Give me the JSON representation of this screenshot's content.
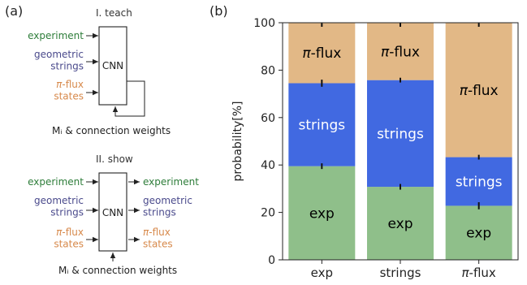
{
  "panel_a": {
    "label": "(a)",
    "teach": {
      "title": "I. teach",
      "box_label": "CNN",
      "inputs": [
        {
          "text": "experiment",
          "color": "#2e7d3a"
        },
        {
          "text": "geometric\nstrings",
          "color": "#4a4a8c"
        },
        {
          "text": "π-flux\nstates",
          "color": "#d7894b"
        }
      ],
      "feedback_label": "Mᵢ & connection weights"
    },
    "show": {
      "title": "II. show",
      "box_label": "CNN",
      "inputs": [
        {
          "text": "experiment",
          "color": "#2e7d3a"
        },
        {
          "text": "geometric\nstrings",
          "color": "#4a4a8c"
        },
        {
          "text": "π-flux\nstates",
          "color": "#d7894b"
        }
      ],
      "outputs": [
        {
          "text": "experiment",
          "color": "#2e7d3a"
        },
        {
          "text": "geometric\nstrings",
          "color": "#4a4a8c"
        },
        {
          "text": "π-flux\nstates",
          "color": "#d7894b"
        }
      ],
      "bottom_label": "Mᵢ & connection weights"
    }
  },
  "panel_b": {
    "label": "(b)"
  },
  "colors": {
    "exp": "#8fbf8a",
    "strings": "#4169e1",
    "piflux": "#e2b886"
  },
  "chart_data": {
    "type": "bar",
    "stacked": true,
    "categories": [
      "exp",
      "strings",
      "π-flux"
    ],
    "series": [
      {
        "name": "exp",
        "values": [
          39.5,
          30.8,
          22.8
        ],
        "errors": [
          1.2,
          1.2,
          1.5
        ],
        "color": "#8fbf8a",
        "label_color": "#000000"
      },
      {
        "name": "strings",
        "values": [
          35.0,
          45.0,
          20.5
        ],
        "errors": [
          1.5,
          1.0,
          1.0
        ],
        "color": "#4169e1",
        "label_color": "#ffffff"
      },
      {
        "name": "π-flux",
        "values": [
          25.5,
          24.2,
          56.7
        ],
        "color": "#e2b886",
        "label_color": "#000000"
      }
    ],
    "ylabel": "probability[%]",
    "ylim": [
      0,
      100
    ],
    "yticks": [
      0,
      20,
      40,
      60,
      80,
      100
    ],
    "ytick_labels": [
      "0",
      "20",
      "40",
      "60",
      "80",
      "100"
    ],
    "grid": false,
    "legend": "none"
  }
}
